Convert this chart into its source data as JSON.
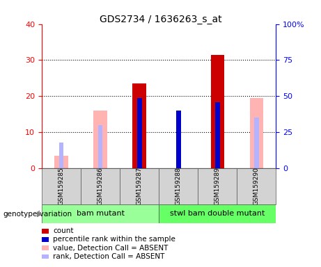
{
  "title": "GDS2734 / 1636263_s_at",
  "samples": [
    "GSM159285",
    "GSM159286",
    "GSM159287",
    "GSM159288",
    "GSM159289",
    "GSM159290"
  ],
  "count_values": [
    null,
    null,
    23.5,
    null,
    31.5,
    null
  ],
  "percentile_rank_values": [
    null,
    null,
    48.5,
    40.0,
    46.0,
    null
  ],
  "absent_value_values": [
    3.5,
    16.0,
    null,
    null,
    null,
    19.5
  ],
  "absent_rank_values": [
    18.0,
    30.0,
    null,
    null,
    null,
    35.0
  ],
  "ylim_left": [
    0,
    40
  ],
  "ylim_right": [
    0,
    100
  ],
  "yticks_left": [
    0,
    10,
    20,
    30,
    40
  ],
  "yticks_right": [
    0,
    25,
    50,
    75,
    100
  ],
  "ytick_labels_right": [
    "0",
    "25",
    "50",
    "75",
    "100%"
  ],
  "color_count": "#cc0000",
  "color_percentile": "#0000cc",
  "color_absent_value": "#ffb3b3",
  "color_absent_rank": "#b3b3ff",
  "group1_label": "bam mutant",
  "group2_label": "stwl bam double mutant",
  "group1_color": "#99ff99",
  "group2_color": "#66ff66",
  "group_label_prefix": "genotype/variation",
  "bar_width": 0.35,
  "narrow_bar_width": 0.12,
  "legend_items": [
    {
      "color": "#cc0000",
      "label": "count"
    },
    {
      "color": "#0000cc",
      "label": "percentile rank within the sample"
    },
    {
      "color": "#ffb3b3",
      "label": "value, Detection Call = ABSENT"
    },
    {
      "color": "#b3b3ff",
      "label": "rank, Detection Call = ABSENT"
    }
  ]
}
